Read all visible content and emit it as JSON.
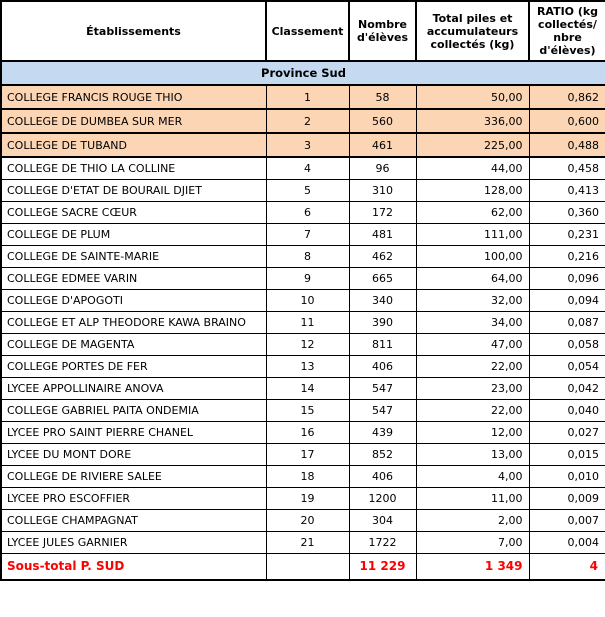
{
  "table": {
    "columns": [
      {
        "label": "Établissements"
      },
      {
        "label": "Classement"
      },
      {
        "label": "Nombre d'élèves"
      },
      {
        "label": "Total piles et accumulateurs collectés (kg)"
      },
      {
        "label": "RATIO (kg collectés/ nbre d'élèves)"
      }
    ],
    "section_header": "Province Sud",
    "rows": [
      {
        "name": "COLLEGE FRANCIS ROUGE THIO",
        "rank": "1",
        "students": "58",
        "collected": "50,00",
        "ratio": "0,862",
        "highlighted": true
      },
      {
        "name": "COLLEGE DE DUMBEA SUR MER",
        "rank": "2",
        "students": "560",
        "collected": "336,00",
        "ratio": "0,600",
        "highlighted": true
      },
      {
        "name": "COLLEGE DE TUBAND",
        "rank": "3",
        "students": "461",
        "collected": "225,00",
        "ratio": "0,488",
        "highlighted": true
      },
      {
        "name": "COLLEGE DE THIO LA COLLINE",
        "rank": "4",
        "students": "96",
        "collected": "44,00",
        "ratio": "0,458",
        "highlighted": false
      },
      {
        "name": "COLLEGE D'ETAT DE BOURAIL DJIET",
        "rank": "5",
        "students": "310",
        "collected": "128,00",
        "ratio": "0,413",
        "highlighted": false
      },
      {
        "name": "COLLEGE SACRE CŒUR",
        "rank": "6",
        "students": "172",
        "collected": "62,00",
        "ratio": "0,360",
        "highlighted": false
      },
      {
        "name": "COLLEGE DE PLUM",
        "rank": "7",
        "students": "481",
        "collected": "111,00",
        "ratio": "0,231",
        "highlighted": false
      },
      {
        "name": "COLLEGE DE SAINTE-MARIE",
        "rank": "8",
        "students": "462",
        "collected": "100,00",
        "ratio": "0,216",
        "highlighted": false
      },
      {
        "name": "COLLEGE EDMEE VARIN",
        "rank": "9",
        "students": "665",
        "collected": "64,00",
        "ratio": "0,096",
        "highlighted": false
      },
      {
        "name": "COLLEGE D'APOGOTI",
        "rank": "10",
        "students": "340",
        "collected": "32,00",
        "ratio": "0,094",
        "highlighted": false
      },
      {
        "name": "COLLEGE ET ALP THEODORE KAWA BRAINO",
        "rank": "11",
        "students": "390",
        "collected": "34,00",
        "ratio": "0,087",
        "highlighted": false
      },
      {
        "name": "COLLEGE DE MAGENTA",
        "rank": "12",
        "students": "811",
        "collected": "47,00",
        "ratio": "0,058",
        "highlighted": false
      },
      {
        "name": "COLLEGE PORTES DE FER",
        "rank": "13",
        "students": "406",
        "collected": "22,00",
        "ratio": "0,054",
        "highlighted": false
      },
      {
        "name": "LYCEE APPOLLINAIRE ANOVA",
        "rank": "14",
        "students": "547",
        "collected": "23,00",
        "ratio": "0,042",
        "highlighted": false
      },
      {
        "name": "COLLEGE GABRIEL PAITA ONDEMIA",
        "rank": "15",
        "students": "547",
        "collected": "22,00",
        "ratio": "0,040",
        "highlighted": false
      },
      {
        "name": "LYCEE PRO SAINT PIERRE CHANEL",
        "rank": "16",
        "students": "439",
        "collected": "12,00",
        "ratio": "0,027",
        "highlighted": false
      },
      {
        "name": "LYCEE DU MONT DORE",
        "rank": "17",
        "students": "852",
        "collected": "13,00",
        "ratio": "0,015",
        "highlighted": false
      },
      {
        "name": "COLLEGE DE RIVIERE SALEE",
        "rank": "18",
        "students": "406",
        "collected": "4,00",
        "ratio": "0,010",
        "highlighted": false
      },
      {
        "name": "LYCEE PRO ESCOFFIER",
        "rank": "19",
        "students": "1200",
        "collected": "11,00",
        "ratio": "0,009",
        "highlighted": false
      },
      {
        "name": "COLLEGE CHAMPAGNAT",
        "rank": "20",
        "students": "304",
        "collected": "2,00",
        "ratio": "0,007",
        "highlighted": false
      },
      {
        "name": "LYCEE JULES GARNIER",
        "rank": "21",
        "students": "1722",
        "collected": "7,00",
        "ratio": "0,004",
        "highlighted": false
      }
    ],
    "subtotal": {
      "label": "Sous-total P. SUD",
      "rank": "",
      "students": "11 229",
      "collected": "1 349",
      "ratio": "4"
    }
  },
  "colors": {
    "highlight_bg": "#FCD5B4",
    "section_bg": "#C5D9F1",
    "subtotal_text": "#FF0000",
    "border": "#000000"
  }
}
